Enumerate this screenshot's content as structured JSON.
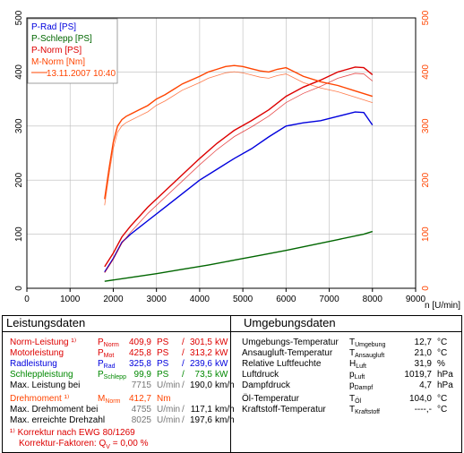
{
  "chart_data": {
    "type": "line",
    "xlabel": "n [U/min]",
    "xlim": [
      0,
      9000
    ],
    "ylim": [
      0,
      500
    ],
    "x_ticks": [
      "0",
      "1000",
      "2000",
      "3000",
      "4000",
      "5000",
      "6000",
      "7000",
      "8000",
      "9000"
    ],
    "y_ticks": [
      "0",
      "100",
      "200",
      "300",
      "400",
      "500"
    ],
    "legend": [
      "P-Rad [PS]",
      "P-Schlepp [PS]",
      "P-Norm [PS]",
      "M-Norm [Nm]",
      "13.11.2007 10:40"
    ],
    "legend_placement": "top-left",
    "series": [
      {
        "name": "P-Rad [PS]",
        "color": "#0000dd",
        "x": [
          1800,
          2000,
          2200,
          2400,
          2800,
          3200,
          3600,
          4000,
          4400,
          4800,
          5200,
          5600,
          6000,
          6400,
          6800,
          7200,
          7600,
          7800,
          8000
        ],
        "y": [
          30,
          55,
          85,
          100,
          125,
          150,
          175,
          200,
          220,
          240,
          258,
          280,
          300,
          306,
          310,
          318,
          326,
          325,
          302
        ]
      },
      {
        "name": "P-Schlepp [PS]",
        "color": "#006600",
        "x": [
          1800,
          2400,
          3000,
          3600,
          4200,
          4800,
          5400,
          6000,
          6600,
          7200,
          7800,
          8000
        ],
        "y": [
          13,
          20,
          27,
          35,
          43,
          52,
          61,
          70,
          80,
          90,
          100,
          105
        ]
      },
      {
        "name": "P-Norm [PS]",
        "color": "#dd0000",
        "x": [
          1800,
          2000,
          2200,
          2400,
          2800,
          3200,
          3600,
          4000,
          4400,
          4800,
          5200,
          5600,
          6000,
          6400,
          6800,
          7200,
          7600,
          7800,
          8000
        ],
        "y": [
          40,
          65,
          95,
          115,
          150,
          180,
          210,
          240,
          268,
          292,
          310,
          330,
          355,
          372,
          385,
          400,
          409,
          408,
          395
        ]
      },
      {
        "name": "M-Norm [Nm]",
        "color": "#ff4400",
        "x": [
          1800,
          1900,
          2000,
          2100,
          2200,
          2300,
          2400,
          2600,
          2800,
          3000,
          3200,
          3400,
          3600,
          3800,
          4000,
          4200,
          4400,
          4600,
          4800,
          5000,
          5200,
          5400,
          5600,
          5800,
          6000,
          6200,
          6400,
          6800,
          7200,
          7600,
          8000
        ],
        "y": [
          165,
          220,
          270,
          300,
          312,
          318,
          322,
          330,
          338,
          350,
          358,
          368,
          378,
          385,
          392,
          400,
          405,
          410,
          412,
          410,
          406,
          402,
          400,
          405,
          408,
          400,
          392,
          382,
          375,
          365,
          355
        ]
      }
    ]
  },
  "panels": {
    "left": {
      "title": "Leistungsdaten",
      "rows": [
        {
          "label": "Norm-Leistung ¹⁾",
          "sym": "P",
          "sub": "Norm",
          "v1": "409,9",
          "u1": "PS",
          "sep": "/",
          "v2": "301,5",
          "u2": "kW",
          "color": "#dd0000"
        },
        {
          "label": "Motorleistung",
          "sym": "P",
          "sub": "Mot",
          "v1": "425,8",
          "u1": "PS",
          "sep": "/",
          "v2": "313,2",
          "u2": "kW",
          "color": "#dd0000"
        },
        {
          "label": "Radleistung",
          "sym": "P",
          "sub": "Rad",
          "v1": "325,8",
          "u1": "PS",
          "sep": "/",
          "v2": "239,6",
          "u2": "kW",
          "color": "#0000dd"
        },
        {
          "label": "Schleppleistung",
          "sym": "P",
          "sub": "Schlepp",
          "v1": "99,9",
          "u1": "PS",
          "sep": "/",
          "v2": "73,5",
          "u2": "kW",
          "color": "#008800"
        },
        {
          "label": "Max. Leistung bei",
          "sym": "",
          "sub": "",
          "v1": "7715",
          "u1": "U/min",
          "sep": "/",
          "v2": "190,0",
          "u2": "km/h",
          "color": "#000"
        },
        {
          "label": "Drehmoment ¹⁾",
          "sym": "M",
          "sub": "Norm",
          "v1": "412,7",
          "u1": "Nm",
          "sep": "",
          "v2": "",
          "u2": "",
          "color": "#ff4400"
        },
        {
          "label": "Max. Drehmoment bei",
          "sym": "",
          "sub": "",
          "v1": "4755",
          "u1": "U/min",
          "sep": "/",
          "v2": "117,1",
          "u2": "km/h",
          "color": "#000"
        },
        {
          "label": "Max. erreichte Drehzahl",
          "sym": "",
          "sub": "",
          "v1": "8025",
          "u1": "U/min",
          "sep": "/",
          "v2": "197,6",
          "u2": "km/h",
          "color": "#000"
        }
      ],
      "footnote1": "¹⁾ Korrektur nach EWG 80/1269",
      "footnote2": "Korrektur-Faktoren: Q",
      "footnote2_sub": "V",
      "footnote2_val": " =   0,00 %"
    },
    "right": {
      "title": "Umgebungsdaten",
      "rows": [
        {
          "label": "Umgebungs-Temperatur",
          "sym": "T",
          "sub": "Umgebung",
          "val": "12,7",
          "unit": "°C"
        },
        {
          "label": "Ansaugluft-Temperatur",
          "sym": "T",
          "sub": "Ansaugluft",
          "val": "21,0",
          "unit": "°C"
        },
        {
          "label": "Relative Luftfeuchte",
          "sym": "H",
          "sub": "Luft",
          "val": "31,9",
          "unit": "%"
        },
        {
          "label": "Luftdruck",
          "sym": "p",
          "sub": "Luft",
          "val": "1019,7",
          "unit": "hPa"
        },
        {
          "label": "Dampfdruck",
          "sym": "p",
          "sub": "Dampf",
          "val": "4,7",
          "unit": "hPa"
        },
        {
          "label": "Öl-Temperatur",
          "sym": "T",
          "sub": "Öl",
          "val": "104,0",
          "unit": "°C"
        },
        {
          "label": "Kraftstoff-Temperatur",
          "sym": "T",
          "sub": "Kraftstoff",
          "val": "----,-",
          "unit": "°C"
        }
      ]
    }
  }
}
